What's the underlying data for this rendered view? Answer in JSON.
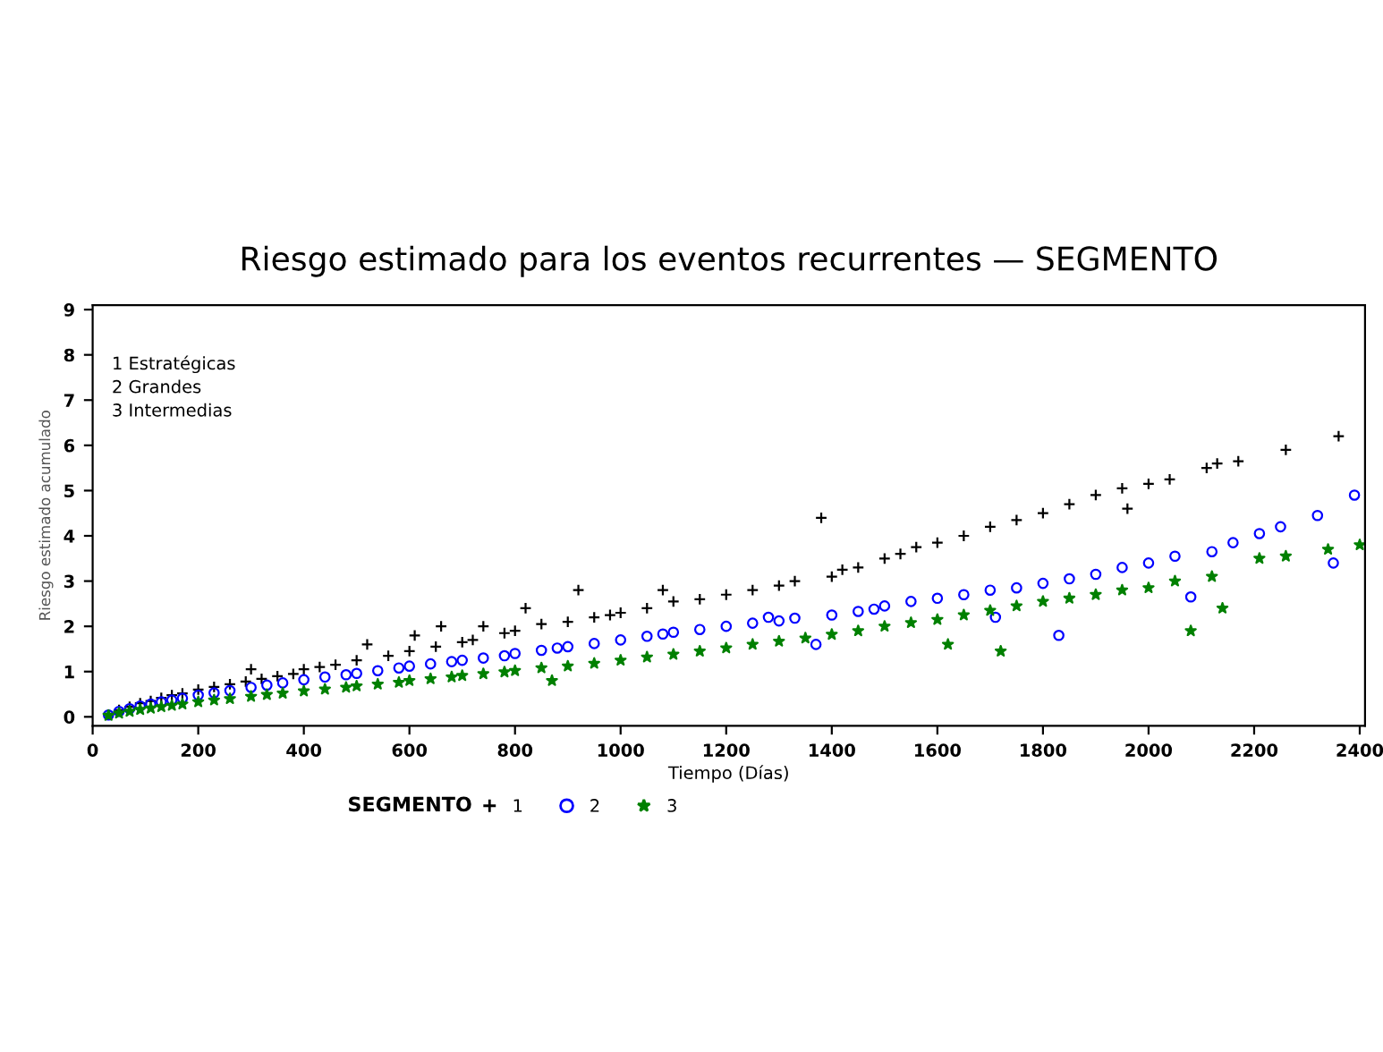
{
  "chart_data": {
    "type": "scatter",
    "title": "Riesgo estimado para los eventos recurrentes — SEGMENTO",
    "xlabel": "Tiempo (Días)",
    "ylabel": "Riesgo estimado acumulado",
    "legend_title": "SEGMENTO",
    "legend": "bottom",
    "grid": false,
    "annotations": [
      "1 Estratégicas\n2 Grandes\n3 Intermedias"
    ],
    "xlim": [
      0,
      2410
    ],
    "ylim": [
      -0.2,
      9.1
    ],
    "xticks": [
      0,
      200,
      400,
      600,
      800,
      1000,
      1200,
      1400,
      1600,
      1800,
      2000,
      2200,
      2400
    ],
    "yticks": [
      0,
      1,
      2,
      3,
      4,
      5,
      6,
      7,
      8,
      9
    ],
    "series": [
      {
        "name": "1",
        "color": "#000000",
        "marker": "cross",
        "x": [
          30,
          50,
          70,
          90,
          110,
          130,
          150,
          170,
          200,
          230,
          260,
          290,
          300,
          320,
          350,
          380,
          400,
          430,
          460,
          500,
          520,
          560,
          600,
          610,
          650,
          660,
          700,
          720,
          740,
          780,
          800,
          820,
          850,
          900,
          920,
          950,
          980,
          1000,
          1050,
          1080,
          1100,
          1150,
          1200,
          1250,
          1300,
          1330,
          1380,
          1400,
          1420,
          1450,
          1500,
          1530,
          1560,
          1600,
          1650,
          1700,
          1750,
          1800,
          1850,
          1900,
          1950,
          1960,
          2000,
          2040,
          2110,
          2130,
          2170,
          2260,
          2360
        ],
        "values": [
          0.05,
          0.15,
          0.22,
          0.3,
          0.35,
          0.42,
          0.48,
          0.52,
          0.6,
          0.66,
          0.72,
          0.78,
          1.05,
          0.84,
          0.9,
          0.95,
          1.05,
          1.1,
          1.15,
          1.25,
          1.6,
          1.35,
          1.45,
          1.8,
          1.55,
          2.0,
          1.65,
          1.7,
          2.0,
          1.85,
          1.9,
          2.4,
          2.05,
          2.1,
          2.8,
          2.2,
          2.25,
          2.3,
          2.4,
          2.8,
          2.55,
          2.6,
          2.7,
          2.8,
          2.9,
          3.0,
          4.4,
          3.1,
          3.25,
          3.3,
          3.5,
          3.6,
          3.75,
          3.85,
          4.0,
          4.2,
          4.35,
          4.5,
          4.7,
          4.9,
          5.05,
          4.6,
          5.15,
          5.25,
          5.5,
          5.6,
          5.65,
          5.9,
          6.2
        ]
      },
      {
        "name": "2",
        "color": "#0000ff",
        "marker": "circle",
        "x": [
          30,
          50,
          70,
          90,
          110,
          130,
          150,
          170,
          200,
          230,
          260,
          300,
          330,
          360,
          400,
          440,
          480,
          500,
          540,
          580,
          600,
          640,
          680,
          700,
          740,
          780,
          800,
          850,
          880,
          900,
          950,
          1000,
          1050,
          1080,
          1100,
          1150,
          1200,
          1250,
          1280,
          1300,
          1330,
          1370,
          1400,
          1450,
          1480,
          1500,
          1550,
          1600,
          1650,
          1700,
          1710,
          1750,
          1800,
          1830,
          1850,
          1900,
          1950,
          2000,
          2050,
          2080,
          2120,
          2160,
          2210,
          2250,
          2320,
          2350,
          2390
        ],
        "values": [
          0.04,
          0.12,
          0.18,
          0.24,
          0.28,
          0.33,
          0.37,
          0.41,
          0.48,
          0.53,
          0.58,
          0.65,
          0.7,
          0.75,
          0.82,
          0.88,
          0.93,
          0.96,
          1.02,
          1.08,
          1.12,
          1.17,
          1.22,
          1.25,
          1.3,
          1.35,
          1.4,
          1.47,
          1.52,
          1.55,
          1.62,
          1.7,
          1.78,
          1.83,
          1.87,
          1.93,
          2.0,
          2.07,
          2.2,
          2.12,
          2.18,
          1.6,
          2.25,
          2.33,
          2.38,
          2.45,
          2.55,
          2.62,
          2.7,
          2.8,
          2.2,
          2.85,
          2.95,
          1.8,
          3.05,
          3.15,
          3.3,
          3.4,
          3.55,
          2.65,
          3.65,
          3.85,
          4.05,
          4.2,
          4.45,
          3.4,
          4.9
        ]
      },
      {
        "name": "3",
        "color": "#008000",
        "marker": "star",
        "x": [
          30,
          50,
          70,
          90,
          110,
          130,
          150,
          170,
          200,
          230,
          260,
          300,
          330,
          360,
          400,
          440,
          480,
          500,
          540,
          580,
          600,
          640,
          680,
          700,
          740,
          780,
          800,
          850,
          870,
          900,
          950,
          1000,
          1050,
          1100,
          1150,
          1200,
          1250,
          1300,
          1350,
          1400,
          1450,
          1500,
          1550,
          1600,
          1620,
          1650,
          1700,
          1720,
          1750,
          1800,
          1850,
          1900,
          1950,
          2000,
          2050,
          2080,
          2120,
          2140,
          2210,
          2260,
          2340,
          2400
        ],
        "values": [
          0.03,
          0.08,
          0.12,
          0.16,
          0.19,
          0.22,
          0.25,
          0.28,
          0.33,
          0.37,
          0.4,
          0.45,
          0.49,
          0.52,
          0.57,
          0.61,
          0.65,
          0.68,
          0.72,
          0.76,
          0.8,
          0.84,
          0.88,
          0.91,
          0.95,
          0.99,
          1.02,
          1.08,
          0.8,
          1.12,
          1.18,
          1.25,
          1.32,
          1.38,
          1.45,
          1.52,
          1.6,
          1.67,
          1.74,
          1.82,
          1.9,
          2.0,
          2.08,
          2.15,
          1.6,
          2.25,
          2.35,
          1.45,
          2.45,
          2.55,
          2.62,
          2.7,
          2.8,
          2.85,
          3.0,
          1.9,
          3.1,
          2.4,
          3.5,
          3.55,
          3.7,
          3.8
        ]
      }
    ]
  }
}
